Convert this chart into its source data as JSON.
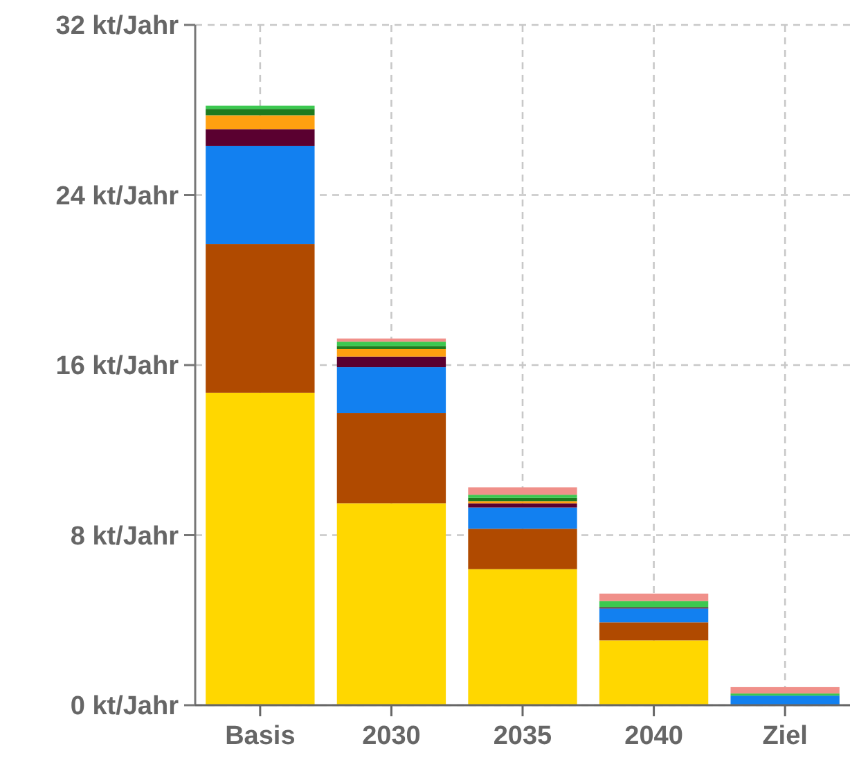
{
  "chart_data": {
    "type": "bar",
    "stacked": true,
    "categories": [
      "Basis",
      "2030",
      "2035",
      "2040",
      "Ziel"
    ],
    "series": [
      {
        "color": "#ffd700",
        "values": [
          14.7,
          9.5,
          6.4,
          3.05,
          0
        ]
      },
      {
        "color": "#b04a00",
        "values": [
          7.0,
          4.25,
          1.9,
          0.85,
          0
        ]
      },
      {
        "color": "#1280f0",
        "values": [
          4.6,
          2.15,
          1.0,
          0.65,
          0.45
        ]
      },
      {
        "color": "#5a0030",
        "values": [
          0.8,
          0.5,
          0.2,
          0.05,
          0
        ]
      },
      {
        "color": "#ffa010",
        "values": [
          0.65,
          0.35,
          0.1,
          0,
          0
        ]
      },
      {
        "color": "#1e7a1e",
        "values": [
          0.3,
          0.15,
          0.15,
          0,
          0
        ]
      },
      {
        "color": "#3cc850",
        "values": [
          0.15,
          0.2,
          0.15,
          0.3,
          0.1
        ]
      },
      {
        "color": "#f0908a",
        "values": [
          0,
          0.15,
          0.35,
          0.35,
          0.3
        ]
      }
    ],
    "ylim": [
      0,
      32
    ],
    "yticks": [
      {
        "value": 0,
        "label": "0 kt/Jahr"
      },
      {
        "value": 8,
        "label": "8 kt/Jahr"
      },
      {
        "value": 16,
        "label": "16 kt/Jahr"
      },
      {
        "value": 24,
        "label": "24 kt/Jahr"
      },
      {
        "value": 32,
        "label": "32 kt/Jahr"
      }
    ],
    "grid": true
  }
}
